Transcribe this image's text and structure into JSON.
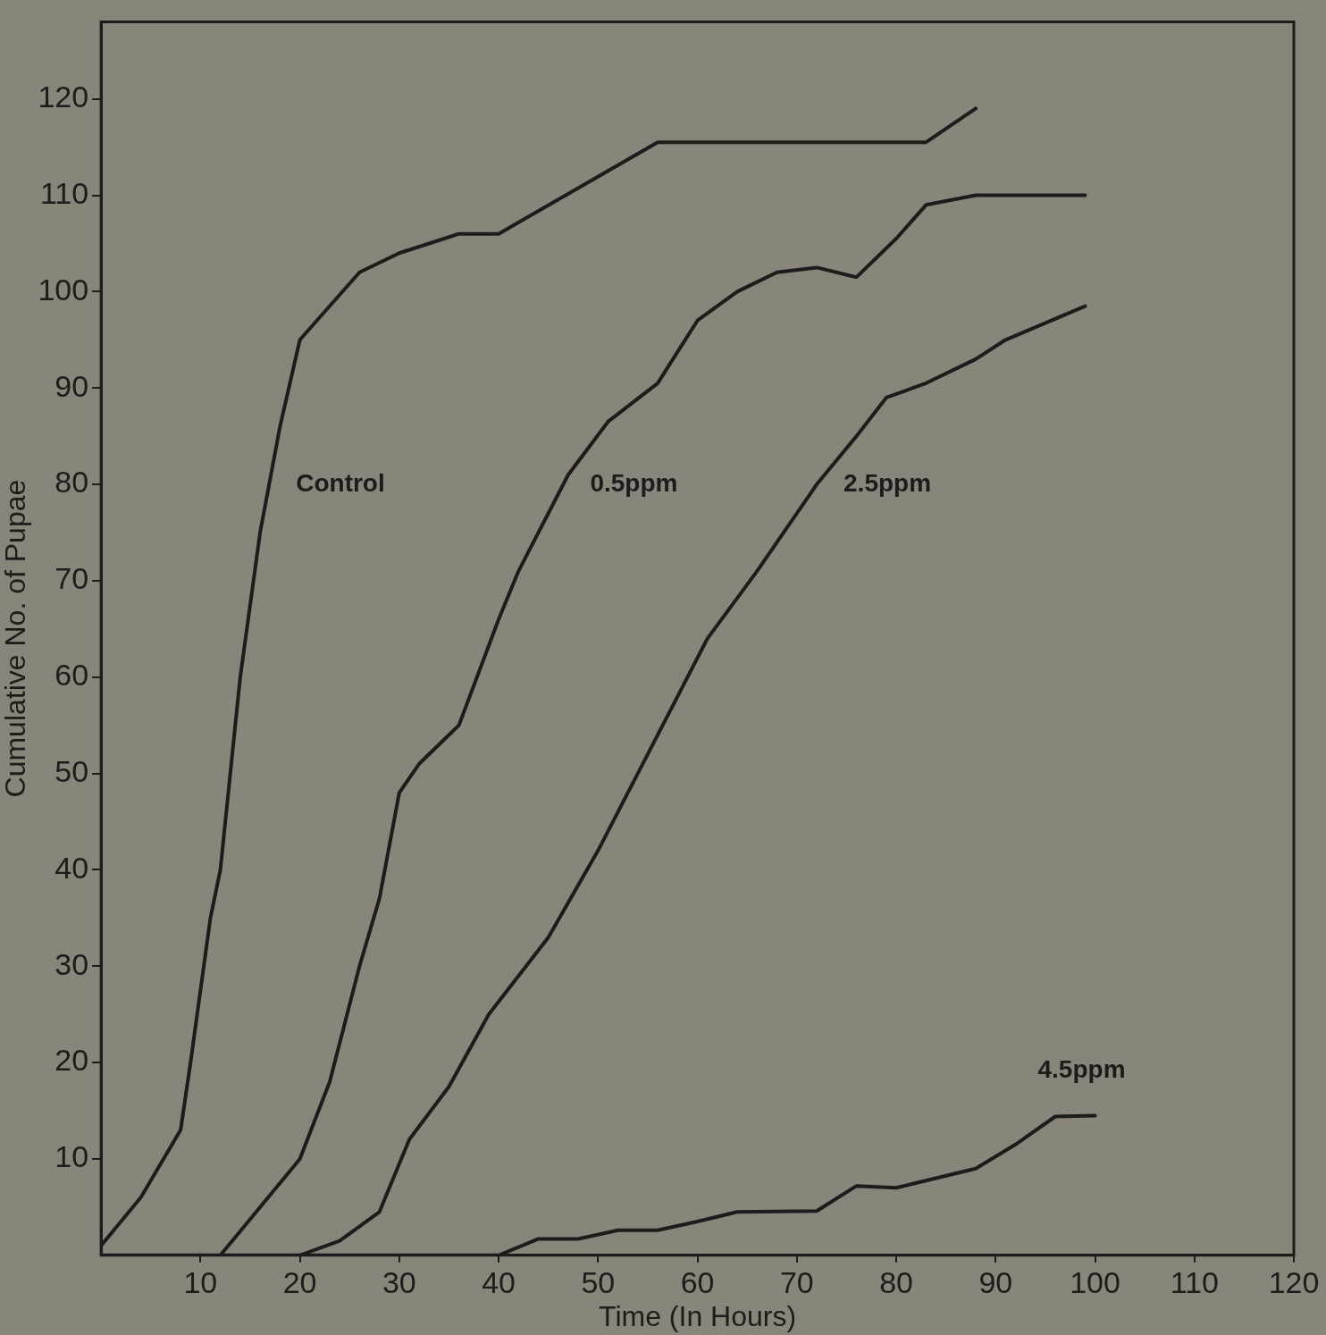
{
  "chart_data": {
    "type": "line",
    "xlabel": "Time (In Hours)",
    "ylabel": "Cumulative No. of Pupae",
    "xlim": [
      0,
      120
    ],
    "ylim": [
      0,
      128
    ],
    "xticks": [
      10,
      20,
      30,
      40,
      50,
      60,
      70,
      80,
      90,
      100,
      110,
      120
    ],
    "yticks": [
      10,
      20,
      30,
      40,
      50,
      60,
      70,
      80,
      90,
      100,
      110,
      120
    ],
    "grid": false,
    "legend": false,
    "marker": "none",
    "line_style": "solid",
    "series": [
      {
        "name": "Control",
        "color": "#1c1c1c",
        "x": [
          0,
          4,
          8,
          9,
          11,
          12,
          14,
          16,
          18,
          20,
          26,
          30,
          36,
          40,
          56,
          83,
          88
        ],
        "values": [
          1,
          6,
          13,
          20,
          35,
          40,
          60,
          75,
          86,
          95,
          102,
          104,
          106,
          106,
          115.5,
          115.5,
          119
        ]
      },
      {
        "name": "0.5ppm",
        "color": "#1c1c1c",
        "x": [
          12,
          20,
          23,
          26,
          28,
          30,
          32,
          36,
          40,
          42,
          47,
          51,
          56,
          60,
          64,
          68,
          72,
          76,
          80,
          83,
          88,
          99
        ],
        "values": [
          0,
          10,
          18,
          30,
          37,
          48,
          51,
          55,
          66,
          71,
          81,
          86.5,
          90.5,
          97,
          100,
          102,
          102.5,
          101.5,
          105.5,
          109,
          110,
          110
        ]
      },
      {
        "name": "2.5ppm",
        "color": "#1c1c1c",
        "x": [
          20,
          24,
          28,
          31,
          35,
          39,
          45,
          50,
          56,
          61,
          66,
          72,
          76,
          79,
          83,
          88,
          91,
          99
        ],
        "values": [
          0,
          1.5,
          4.5,
          12,
          17.5,
          25,
          33,
          42,
          54,
          64,
          71,
          80,
          85,
          89,
          90.5,
          93,
          95,
          98.5
        ]
      },
      {
        "name": "4.5ppm",
        "color": "#1c1c1c",
        "x": [
          0,
          40,
          44,
          48,
          52,
          56,
          60,
          64,
          72,
          76,
          80,
          84,
          88,
          92,
          96,
          100
        ],
        "values": [
          0,
          0,
          1.7,
          1.7,
          2.6,
          2.6,
          3.5,
          4.5,
          4.6,
          7.2,
          7,
          8,
          9,
          11.5,
          14.4,
          14.5
        ]
      }
    ]
  }
}
